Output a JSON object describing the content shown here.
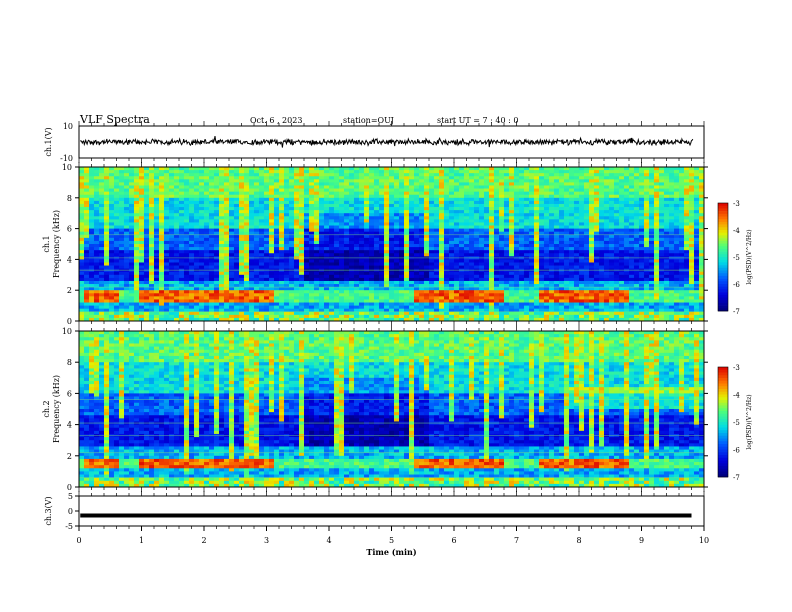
{
  "header": {
    "title": "VLF Spectra",
    "date": "Oct. 6 , 2023",
    "station": "station=OUJ",
    "start": "start UT = 7 : 40 : 0"
  },
  "chart_data": [
    {
      "type": "line",
      "ylabel": "ch.1(V)",
      "ylim": [
        -10,
        10
      ],
      "yticks": [
        "10",
        "-10"
      ],
      "xlim": [
        0,
        10
      ],
      "description_values": {
        "amplitude_approx": 1.5
      }
    },
    {
      "type": "heatmap",
      "ylabel": "ch.1 Frequency (kHz)",
      "ylim": [
        0,
        10
      ],
      "yticks": [
        "0",
        "2",
        "4",
        "6",
        "8",
        "10"
      ],
      "xlim": [
        0,
        10
      ],
      "colorbar": {
        "label": "log(PSD)(V^2/Hz)",
        "range": [
          -7,
          -3
        ],
        "ticks": [
          "-3",
          "-4",
          "-5",
          "-6",
          "-7"
        ]
      },
      "strong_band_intervals_min": [
        [
          0.1,
          0.65
        ],
        [
          1.0,
          3.1
        ],
        [
          5.4,
          6.8
        ],
        [
          7.4,
          8.8
        ]
      ],
      "strong_band_khz": [
        1.3,
        2.0
      ]
    },
    {
      "type": "heatmap",
      "ylabel": "ch.2 Frequency (kHz)",
      "ylim": [
        0,
        10
      ],
      "yticks": [
        "0",
        "2",
        "4",
        "6",
        "8",
        "10"
      ],
      "xlim": [
        0,
        10
      ],
      "colorbar": {
        "label": "log(PSD)(V^2/Hz)",
        "range": [
          -7,
          -3
        ],
        "ticks": [
          "-3",
          "-4",
          "-5",
          "-6",
          "-7"
        ]
      },
      "strong_band_intervals_min": [
        [
          0.1,
          0.65
        ],
        [
          1.0,
          3.1
        ],
        [
          5.4,
          6.8
        ],
        [
          7.4,
          8.8
        ]
      ],
      "strong_band_khz": [
        1.2,
        1.8
      ]
    },
    {
      "type": "line",
      "ylabel": "ch.3(V)",
      "ylim": [
        -5,
        5
      ],
      "yticks": [
        "5",
        "0",
        "-5"
      ],
      "xlim": [
        0,
        10
      ],
      "xlabel": "Time (min)",
      "xticks": [
        "0",
        "1",
        "2",
        "3",
        "4",
        "5",
        "6",
        "7",
        "8",
        "9",
        "10"
      ],
      "constant_value": -1.5
    }
  ]
}
